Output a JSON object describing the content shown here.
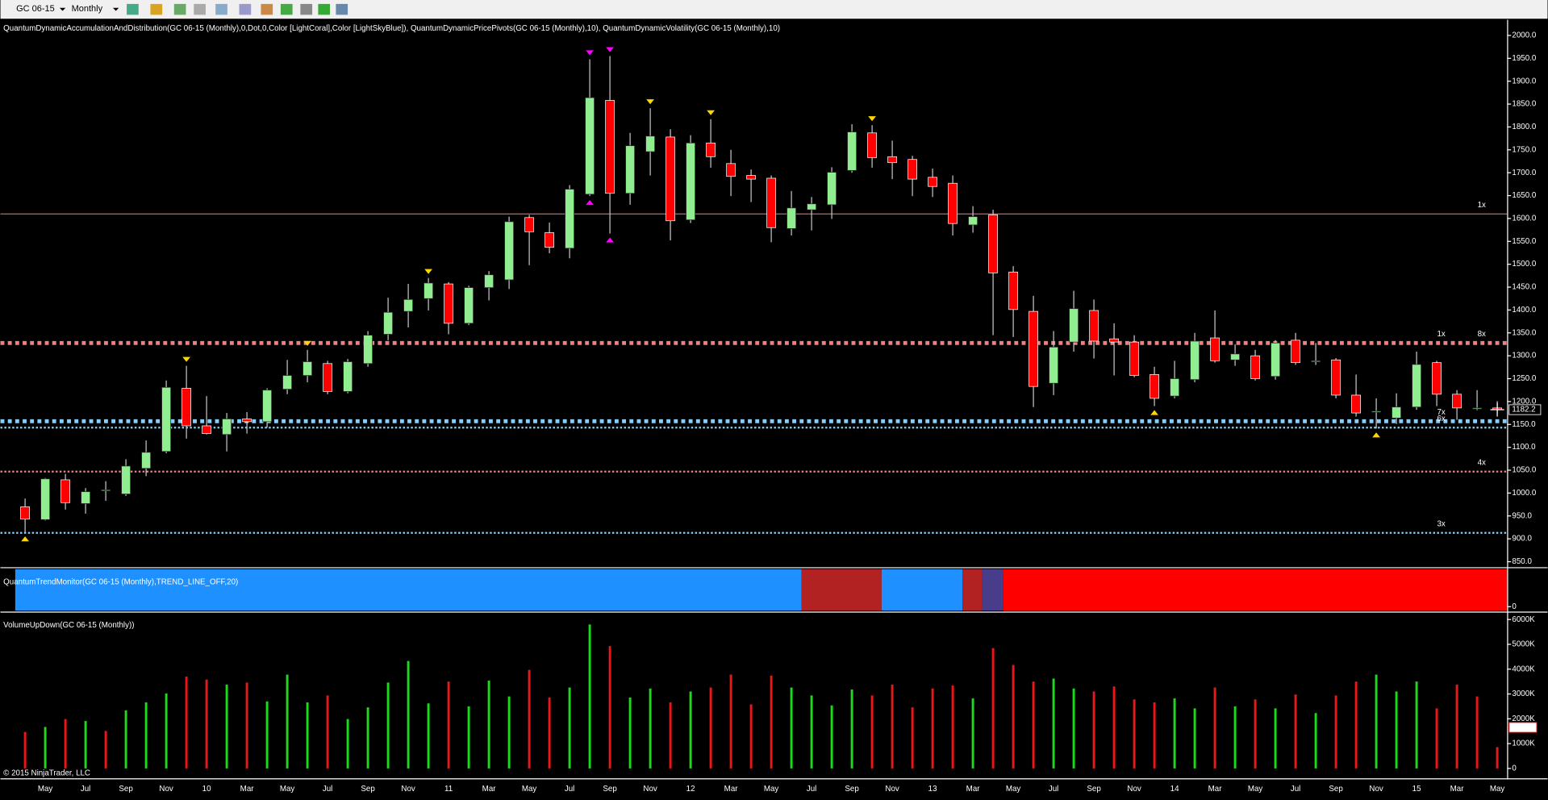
{
  "toolbar": {
    "instrument": "GC 06-15",
    "period": "Monthly"
  },
  "footer": "© 2015 NinjaTrader, LLC",
  "chart_data": [
    {
      "type": "candlestick",
      "title": "QuantumDynamicAccumulationAndDistribution(GC 06-15 (Monthly),0,Dot,0,Color [LightCoral],Color [LightSkyBlue]), QuantumDynamicPricePivots(GC 06-15 (Monthly),10), QuantumDynamicVolatility(GC 06-15 (Monthly),10)",
      "categories": [
        null,
        "May",
        null,
        "Jul",
        null,
        "Sep",
        null,
        "Nov",
        null,
        "10",
        null,
        "Mar",
        null,
        "May",
        null,
        "Jul",
        null,
        "Sep",
        null,
        "Nov",
        null,
        "11",
        null,
        "Mar",
        null,
        "May",
        null,
        "Jul",
        null,
        "Sep",
        null,
        "Nov",
        null,
        "12",
        null,
        "Mar",
        null,
        "May",
        null,
        "Jul",
        null,
        "Sep",
        null,
        "Nov",
        null,
        "13",
        null,
        "Mar",
        null,
        "May",
        null,
        "Jul",
        null,
        "Sep",
        null,
        "Nov",
        null,
        "14",
        null,
        "Mar",
        null,
        "May",
        null,
        "Jul",
        null,
        "Sep",
        null,
        "Nov",
        null,
        "15",
        null,
        "Mar",
        null,
        "May"
      ],
      "open": [
        970,
        942,
        1029,
        977,
        1005,
        998,
        1054,
        1091,
        1229,
        1147,
        1128,
        1162,
        1156,
        1227,
        1257,
        1283,
        1222,
        1283,
        1347,
        1397,
        1425,
        1457,
        1371,
        1449,
        1466,
        1602,
        1569,
        1535,
        1653,
        1858,
        1655,
        1746,
        1778,
        1597,
        1765,
        1720,
        1694,
        1688,
        1578,
        1619,
        1630,
        1705,
        1787,
        1735,
        1729,
        1690,
        1677,
        1586,
        1608,
        1483,
        1397,
        1240,
        1330,
        1399,
        1337,
        1330,
        1259,
        1212,
        1248,
        1339,
        1291,
        1300,
        1255,
        1334,
        1288,
        1291,
        1214,
        1178,
        1164,
        1188,
        1285,
        1216,
        1185,
        1186
      ],
      "high": [
        988,
        1033,
        1042,
        1011,
        1026,
        1074,
        1115,
        1246,
        1278,
        1212,
        1175,
        1177,
        1229,
        1291,
        1313,
        1289,
        1293,
        1354,
        1427,
        1457,
        1470,
        1461,
        1453,
        1485,
        1604,
        1608,
        1591,
        1673,
        1948,
        1955,
        1787,
        1841,
        1795,
        1782,
        1817,
        1750,
        1707,
        1694,
        1660,
        1647,
        1712,
        1806,
        1804,
        1770,
        1737,
        1709,
        1694,
        1627,
        1619,
        1496,
        1431,
        1354,
        1442,
        1423,
        1371,
        1345,
        1276,
        1289,
        1350,
        1399,
        1325,
        1313,
        1334,
        1350,
        1328,
        1295,
        1259,
        1207,
        1218,
        1309,
        1289,
        1225,
        1225,
        1201
      ],
      "low": [
        914,
        940,
        964,
        955,
        983,
        994,
        1037,
        1087,
        1119,
        1128,
        1091,
        1130,
        1143,
        1216,
        1242,
        1216,
        1218,
        1276,
        1334,
        1362,
        1399,
        1347,
        1367,
        1421,
        1446,
        1498,
        1524,
        1513,
        1649,
        1567,
        1630,
        1694,
        1552,
        1590,
        1711,
        1649,
        1636,
        1548,
        1563,
        1574,
        1599,
        1700,
        1711,
        1686,
        1649,
        1647,
        1563,
        1569,
        1345,
        1341,
        1188,
        1214,
        1309,
        1294,
        1257,
        1253,
        1190,
        1207,
        1242,
        1285,
        1278,
        1246,
        1248,
        1280,
        1280,
        1207,
        1167,
        1141,
        1151,
        1182,
        1190,
        1160,
        1181,
        1173
      ],
      "close": [
        943,
        1031,
        979,
        1003,
        1007,
        1059,
        1089,
        1231,
        1147,
        1130,
        1162,
        1156,
        1225,
        1257,
        1287,
        1222,
        1287,
        1345,
        1395,
        1423,
        1459,
        1371,
        1449,
        1477,
        1593,
        1571,
        1537,
        1664,
        1864,
        1655,
        1759,
        1780,
        1595,
        1765,
        1735,
        1692,
        1686,
        1580,
        1623,
        1632,
        1701,
        1789,
        1733,
        1722,
        1686,
        1670,
        1589,
        1604,
        1481,
        1401,
        1233,
        1319,
        1403,
        1332,
        1330,
        1257,
        1207,
        1250,
        1332,
        1289,
        1304,
        1250,
        1328,
        1285,
        1289,
        1214,
        1175,
        1179,
        1188,
        1281,
        1216,
        1186,
        1186,
        1182.2
      ],
      "up_color": "#90ee90",
      "down_color": "#ff0000",
      "wick_color": "#c8c8c8",
      "ylim": [
        838,
        2030
      ],
      "yticks": [
        {
          "value": 850,
          "label": "850.0"
        },
        {
          "value": 900,
          "label": "900.0"
        },
        {
          "value": 950,
          "label": "950.0"
        },
        {
          "value": 1000,
          "label": "1000.0"
        },
        {
          "value": 1050,
          "label": "1050.0"
        },
        {
          "value": 1100,
          "label": "1100.0"
        },
        {
          "value": 1150,
          "label": "1150.0"
        },
        {
          "value": 1200,
          "label": "1200.0"
        },
        {
          "value": 1250,
          "label": "1250.0"
        },
        {
          "value": 1300,
          "label": "1300.0"
        },
        {
          "value": 1350,
          "label": "1350.0"
        },
        {
          "value": 1400,
          "label": "1400.0"
        },
        {
          "value": 1450,
          "label": "1450.0"
        },
        {
          "value": 1500,
          "label": "1500.0"
        },
        {
          "value": 1550,
          "label": "1550.0"
        },
        {
          "value": 1600,
          "label": "1600.0"
        },
        {
          "value": 1650,
          "label": "1650.0"
        },
        {
          "value": 1700,
          "label": "1700.0"
        },
        {
          "value": 1750,
          "label": "1750.0"
        },
        {
          "value": 1800,
          "label": "1800.0"
        },
        {
          "value": 1850,
          "label": "1850.0"
        },
        {
          "value": 1900,
          "label": "1900.0"
        },
        {
          "value": 1950,
          "label": "1950.0"
        },
        {
          "value": 2000,
          "label": "2000.0"
        }
      ],
      "levels": [
        {
          "value": 1610,
          "color": "#f08080",
          "style": "solid",
          "labels": [
            {
              "text": "1x",
              "color": "#f08080"
            }
          ]
        },
        {
          "value": 1328,
          "color": "#f08080",
          "style": "thick",
          "labels": [
            {
              "text": "1x",
              "color": "#87cefa"
            },
            {
              "text": "8x",
              "color": "#f08080"
            }
          ]
        },
        {
          "value": 1157,
          "color": "#87cefa",
          "style": "thick",
          "labels": [
            {
              "text": "7x",
              "color": "#87cefa"
            }
          ]
        },
        {
          "value": 1143,
          "color": "#87cefa",
          "style": "thin",
          "labels": [
            {
              "text": "6x",
              "color": "#87cefa"
            }
          ]
        },
        {
          "value": 1047,
          "color": "#f08080",
          "style": "thin",
          "labels": [
            {
              "text": "4x",
              "color": "#f08080"
            }
          ]
        },
        {
          "value": 913,
          "color": "#87cefa",
          "style": "thin",
          "labels": [
            {
              "text": "3x",
              "color": "#87cefa"
            }
          ]
        }
      ],
      "pivots": [
        {
          "index": 0,
          "kind": "low",
          "color": "#ffd700"
        },
        {
          "index": 8,
          "kind": "high",
          "color": "#ffd700"
        },
        {
          "index": 14,
          "kind": "high",
          "color": "#ffd700"
        },
        {
          "index": 20,
          "kind": "high",
          "color": "#ffd700"
        },
        {
          "index": 28,
          "kind": "high",
          "color": "#ff00ff"
        },
        {
          "index": 28,
          "kind": "low",
          "color": "#ff00ff"
        },
        {
          "index": 29,
          "kind": "high",
          "color": "#ff00ff"
        },
        {
          "index": 29,
          "kind": "low",
          "color": "#ff00ff"
        },
        {
          "index": 31,
          "kind": "high",
          "color": "#ffd700"
        },
        {
          "index": 34,
          "kind": "high",
          "color": "#ffd700"
        },
        {
          "index": 42,
          "kind": "high",
          "color": "#ffd700"
        },
        {
          "index": 56,
          "kind": "low",
          "color": "#ffd700"
        },
        {
          "index": 67,
          "kind": "low",
          "color": "#ffd700"
        }
      ],
      "last_price": 1182.2
    },
    {
      "type": "trend",
      "title": "QuantumTrendMonitor(GC 06-15 (Monthly),TREND_LINE_OFF,20)",
      "yticks": [
        0
      ]
    },
    {
      "type": "bar",
      "title": "VolumeUpDown(GC 06-15 (Monthly))",
      "values": [
        1470,
        1670,
        1990,
        1910,
        1510,
        2340,
        2660,
        3020,
        3700,
        3580,
        3380,
        3460,
        2700,
        3780,
        2660,
        2940,
        1990,
        2460,
        3460,
        4330,
        2620,
        3500,
        2500,
        3540,
        2900,
        3970,
        2860,
        3260,
        5800,
        4930,
        2860,
        3220,
        2660,
        3100,
        3260,
        3780,
        2580,
        3740,
        3260,
        2940,
        2540,
        3180,
        2940,
        3380,
        2460,
        3220,
        3340,
        2820,
        4850,
        4170,
        3500,
        3620,
        3220,
        3100,
        3300,
        2780,
        2660,
        2820,
        2420,
        3260,
        2500,
        2780,
        2420,
        2980,
        2230,
        2940,
        3500,
        3780,
        3100,
        3500,
        2420,
        3380,
        2900,
        858
      ],
      "up": [
        0,
        1,
        0,
        1,
        0,
        1,
        1,
        1,
        0,
        0,
        1,
        0,
        1,
        1,
        1,
        0,
        1,
        1,
        1,
        1,
        1,
        0,
        1,
        1,
        1,
        0,
        0,
        1,
        1,
        0,
        1,
        1,
        0,
        1,
        0,
        0,
        0,
        0,
        1,
        1,
        1,
        1,
        0,
        0,
        0,
        0,
        0,
        1,
        0,
        0,
        0,
        1,
        1,
        0,
        0,
        0,
        0,
        1,
        1,
        0,
        1,
        0,
        1,
        0,
        1,
        0,
        0,
        1,
        1,
        1,
        0,
        0,
        0,
        0
      ],
      "up_color": "#1ed81e",
      "down_color": "#e81818",
      "last_label": "858K",
      "ylim": [
        -80,
        6240
      ],
      "yticks": [
        0,
        {
          "value": 1000,
          "label": "1000K"
        },
        {
          "value": 2000,
          "label": "2000K"
        },
        {
          "value": 3000,
          "label": "3000K"
        },
        {
          "value": 4000,
          "label": "4000K"
        },
        {
          "value": 5000,
          "label": "5000K"
        },
        {
          "value": 6000,
          "label": "6000K"
        }
      ]
    }
  ]
}
